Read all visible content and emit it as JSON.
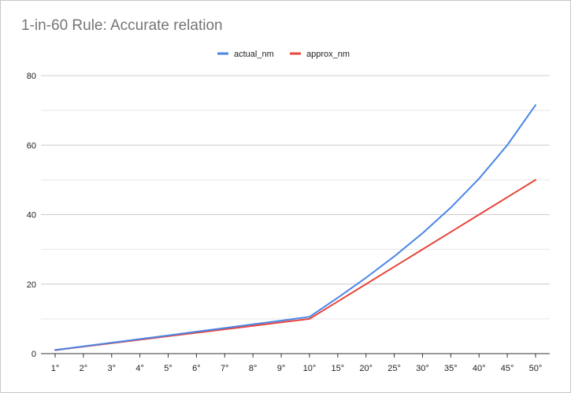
{
  "chart_data": {
    "type": "line",
    "title": "1-in-60 Rule: Accurate relation",
    "xlabel": "",
    "ylabel": "",
    "categories": [
      "1°",
      "2°",
      "3°",
      "4°",
      "5°",
      "6°",
      "7°",
      "8°",
      "9°",
      "10°",
      "15°",
      "20°",
      "25°",
      "30°",
      "35°",
      "40°",
      "45°",
      "50°"
    ],
    "series": [
      {
        "name": "actual_nm",
        "color": "#4a86e8",
        "values": [
          1.05,
          2.09,
          3.14,
          4.19,
          5.25,
          6.31,
          7.37,
          8.43,
          9.5,
          10.58,
          16.08,
          21.84,
          27.98,
          34.64,
          42.01,
          50.35,
          60.0,
          71.51
        ]
      },
      {
        "name": "approx_nm",
        "color": "#e8453c",
        "values": [
          1,
          2,
          3,
          4,
          5,
          6,
          7,
          8,
          9,
          10,
          15,
          20,
          25,
          30,
          35,
          40,
          45,
          50
        ]
      }
    ],
    "ylim": [
      0,
      80
    ],
    "yticks": [
      0,
      20,
      40,
      60,
      80
    ],
    "grid": true,
    "legend_position": "top"
  }
}
